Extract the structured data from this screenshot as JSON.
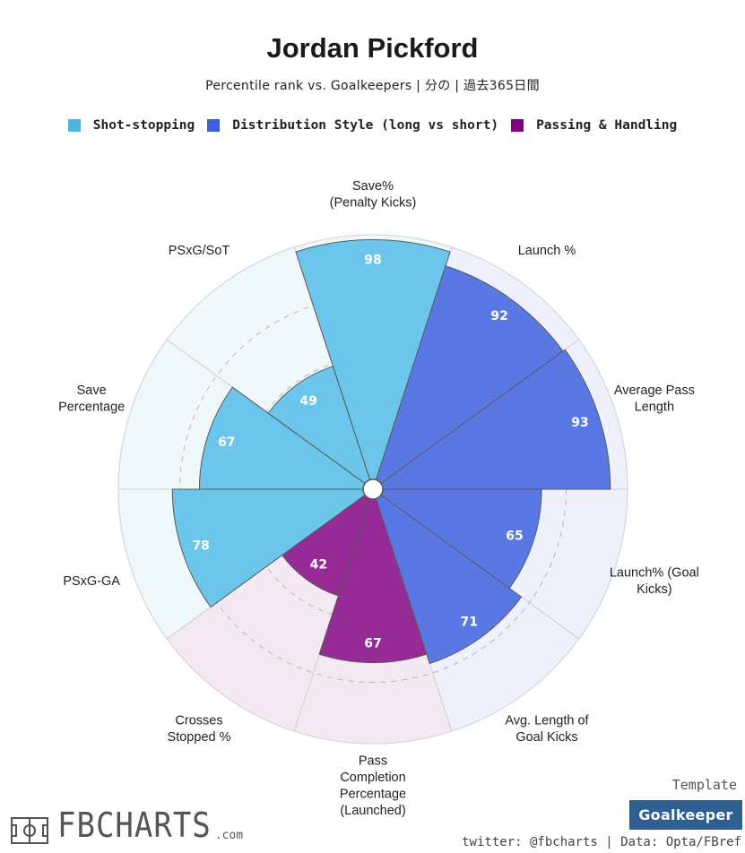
{
  "header": {
    "title": "Jordan Pickford",
    "subtitle": "Percentile rank vs. Goalkeepers | 分の | 過去365日間"
  },
  "legend": [
    {
      "label": "Shot-stopping",
      "color": "#4db6e0"
    },
    {
      "label": "Distribution Style (long vs short)",
      "color": "#3c5ee0"
    },
    {
      "label": "Passing & Handling",
      "color": "#800080"
    }
  ],
  "chart_data": {
    "type": "polar-bar",
    "range": [
      0,
      100
    ],
    "grid": true,
    "metrics": [
      {
        "label": "Save%\n(Penalty Kicks)",
        "value": 98,
        "group": "Shot-stopping"
      },
      {
        "label": "Launch %",
        "value": 92,
        "group": "Distribution Style (long vs short)"
      },
      {
        "label": "Average Pass\nLength",
        "value": 93,
        "group": "Distribution Style (long vs short)"
      },
      {
        "label": "Launch% (Goal\nKicks)",
        "value": 65,
        "group": "Distribution Style (long vs short)"
      },
      {
        "label": "Avg. Length of\nGoal Kicks",
        "value": 71,
        "group": "Distribution Style (long vs short)"
      },
      {
        "label": "Pass\nCompletion\nPercentage\n(Launched)",
        "value": 67,
        "group": "Passing & Handling"
      },
      {
        "label": "Crosses\nStopped %",
        "value": 42,
        "group": "Passing & Handling"
      },
      {
        "label": "PSxG-GA",
        "value": 78,
        "group": "Shot-stopping"
      },
      {
        "label": "Save\nPercentage",
        "value": 67,
        "group": "Shot-stopping"
      },
      {
        "label": "PSxG/SoT",
        "value": 49,
        "group": "Shot-stopping"
      }
    ],
    "colors": {
      "Shot-stopping": "#6cc5ea",
      "Distribution Style (long vs short)": "#5a78e4",
      "Passing & Handling": "#962a96"
    },
    "background_colors": {
      "Shot-stopping": "#eff8fb",
      "Distribution Style (long vs short)": "#eef0fb",
      "Passing & Handling": "#f4e9f3"
    }
  },
  "footer": {
    "template_label": "Template",
    "template_value": "Goalkeeper",
    "credits": "twitter: @fbcharts | Data: Opta/FBref",
    "logo_text": "FBCHARTS",
    "logo_suffix": ".com"
  }
}
